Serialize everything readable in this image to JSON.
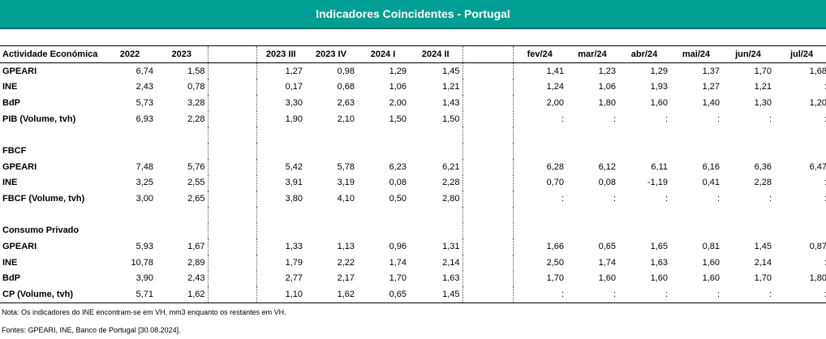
{
  "title": "Indicadores Coincidentes -  Portugal",
  "columns": {
    "label": "Actividade Económica",
    "annual": [
      "2022",
      "2023"
    ],
    "quarterly": [
      "2023 III",
      "2023 IV",
      "2024 I",
      "2024 II"
    ],
    "monthly": [
      "fev/24",
      "mar/24",
      "abr/24",
      "mai/24",
      "jun/24",
      "jul/24"
    ]
  },
  "rows": [
    {
      "type": "data",
      "label": "GPEARI",
      "values": [
        "6,74",
        "1,58",
        "1,27",
        "0,98",
        "1,29",
        "1,45",
        "1,41",
        "1,23",
        "1,29",
        "1,37",
        "1,70",
        "1,68"
      ]
    },
    {
      "type": "data",
      "label": "INE",
      "values": [
        "2,43",
        "0,78",
        "0,17",
        "0,68",
        "1,06",
        "1,21",
        "1,24",
        "1,06",
        "1,93",
        "1,27",
        "1,21",
        ":"
      ]
    },
    {
      "type": "data",
      "label": "BdP",
      "values": [
        "5,73",
        "3,28",
        "3,30",
        "2,63",
        "2,00",
        "1,43",
        "2,00",
        "1,80",
        "1,60",
        "1,40",
        "1,30",
        "1,20"
      ]
    },
    {
      "type": "data",
      "label": "PIB (Volume, tvh)",
      "values": [
        "6,93",
        "2,28",
        "1,90",
        "2,10",
        "1,50",
        "1,50",
        ":",
        ":",
        ":",
        ":",
        ":",
        ":"
      ]
    },
    {
      "type": "blank"
    },
    {
      "type": "section",
      "label": "FBCF"
    },
    {
      "type": "data",
      "label": "GPEARI",
      "values": [
        "7,48",
        "5,76",
        "5,42",
        "5,78",
        "6,23",
        "6,21",
        "6,28",
        "6,12",
        "6,11",
        "6,16",
        "6,36",
        "6,47"
      ]
    },
    {
      "type": "data",
      "label": "INE",
      "values": [
        "3,25",
        "2,55",
        "3,91",
        "3,19",
        "0,08",
        "2,28",
        "0,70",
        "0,08",
        "-1,19",
        "0,41",
        "2,28",
        ":"
      ]
    },
    {
      "type": "data",
      "label": "FBCF (Volume, tvh)",
      "values": [
        "3,00",
        "2,65",
        "3,80",
        "4,10",
        "0,50",
        "2,80",
        ":",
        ":",
        ":",
        ":",
        ":",
        ":"
      ]
    },
    {
      "type": "blank"
    },
    {
      "type": "section",
      "label": "Consumo Privado"
    },
    {
      "type": "data",
      "label": "GPEARI",
      "values": [
        "5,93",
        "1,67",
        "1,33",
        "1,13",
        "0,96",
        "1,31",
        "1,66",
        "0,65",
        "1,65",
        "0,81",
        "1,45",
        "0,87"
      ]
    },
    {
      "type": "data",
      "label": "INE",
      "values": [
        "10,78",
        "2,89",
        "1,79",
        "2,22",
        "1,74",
        "2,14",
        "2,50",
        "1,74",
        "1,63",
        "1,60",
        "2,14",
        ":"
      ]
    },
    {
      "type": "data",
      "label": "BdP",
      "values": [
        "3,90",
        "2,43",
        "2,77",
        "2,17",
        "1,70",
        "1,63",
        "1,70",
        "1,60",
        "1,60",
        "1,60",
        "1,70",
        "1,80"
      ]
    },
    {
      "type": "data",
      "label": "CP (Volume, tvh)",
      "values": [
        "5,71",
        "1,62",
        "1,10",
        "1,62",
        "0,65",
        "1,45",
        ":",
        ":",
        ":",
        ":",
        ":",
        ":"
      ]
    }
  ],
  "notes": {
    "note": "Nota: Os indicadores do INE encontram-se em VH, mm3 enquanto os restantes em VH.",
    "sources": "Fontes: GPEARI, INE, Banco de Portugal [30.08.2024]."
  },
  "colors": {
    "banner": "#009e94"
  }
}
